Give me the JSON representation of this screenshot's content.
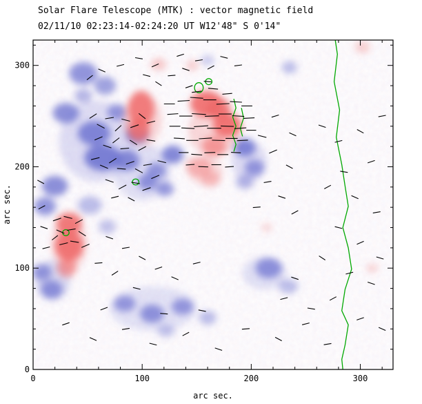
{
  "chart_data": {
    "type": "heatmap",
    "title": "Solar Flare Telescope (MTK) : vector magnetic field",
    "subtitle": "02/11/10  02:23:14-02:24:20 UT    W12'48\"  S 0'14\"",
    "xlabel": "arc sec.",
    "ylabel": "arc sec.",
    "xlim": [
      0,
      330
    ],
    "ylim": [
      0,
      325
    ],
    "xticks": [
      0,
      100,
      200,
      300
    ],
    "yticks": [
      0,
      100,
      200,
      300
    ],
    "minor_tick_step": 20,
    "colors": {
      "positive_polarity": "#ef6a6a",
      "negative_polarity": "#6f74d0",
      "contour": "#00a800",
      "vector": "#000000",
      "axis": "#000000",
      "background": "#ffffff"
    },
    "legend": "none",
    "grid": false,
    "regions_negative": [
      [
        58,
        225,
        34,
        40,
        0.22
      ],
      [
        100,
        195,
        26,
        28,
        0.2
      ],
      [
        110,
        60,
        40,
        22,
        0.18
      ],
      [
        18,
        88,
        16,
        20,
        0.25
      ],
      [
        212,
        95,
        20,
        16,
        0.2
      ],
      [
        198,
        205,
        16,
        20,
        0.22
      ],
      [
        46,
        292,
        13,
        11,
        0.75
      ],
      [
        66,
        280,
        10,
        9,
        0.65
      ],
      [
        30,
        253,
        12,
        10,
        0.8
      ],
      [
        56,
        233,
        15,
        12,
        0.85
      ],
      [
        64,
        209,
        17,
        13,
        0.9
      ],
      [
        86,
        206,
        12,
        10,
        0.8
      ],
      [
        95,
        231,
        10,
        8,
        0.75
      ],
      [
        77,
        254,
        9,
        8,
        0.7
      ],
      [
        20,
        181,
        12,
        10,
        0.8
      ],
      [
        11,
        161,
        10,
        9,
        0.75
      ],
      [
        52,
        162,
        11,
        9,
        0.45
      ],
      [
        68,
        141,
        8,
        7,
        0.4
      ],
      [
        128,
        212,
        10,
        9,
        0.85
      ],
      [
        113,
        196,
        9,
        8,
        0.7
      ],
      [
        105,
        185,
        9,
        8,
        0.75
      ],
      [
        121,
        178,
        8,
        7,
        0.7
      ],
      [
        194,
        219,
        10,
        9,
        0.85
      ],
      [
        203,
        199,
        9,
        8,
        0.7
      ],
      [
        194,
        185,
        8,
        7,
        0.5
      ],
      [
        235,
        298,
        7,
        6,
        0.45
      ],
      [
        160,
        305,
        6,
        5,
        0.35
      ],
      [
        216,
        100,
        12,
        10,
        0.75
      ],
      [
        234,
        82,
        9,
        7,
        0.45
      ],
      [
        8,
        96,
        9,
        8,
        0.7
      ],
      [
        17,
        79,
        10,
        9,
        0.75
      ],
      [
        84,
        65,
        10,
        8,
        0.7
      ],
      [
        109,
        55,
        11,
        9,
        0.75
      ],
      [
        137,
        62,
        10,
        8,
        0.7
      ],
      [
        160,
        51,
        8,
        7,
        0.45
      ],
      [
        122,
        38,
        8,
        6,
        0.4
      ],
      [
        46,
        270,
        8,
        7,
        0.5
      ]
    ],
    "regions_positive": [
      [
        100,
        246,
        18,
        26,
        0.25
      ],
      [
        166,
        235,
        24,
        24,
        0.25
      ],
      [
        33,
        124,
        16,
        26,
        0.27
      ],
      [
        158,
        196,
        16,
        14,
        0.2
      ],
      [
        99,
        257,
        12,
        18,
        0.85
      ],
      [
        97,
        237,
        10,
        11,
        0.8
      ],
      [
        159,
        262,
        15,
        13,
        0.9
      ],
      [
        178,
        241,
        13,
        12,
        0.9
      ],
      [
        170,
        257,
        11,
        11,
        0.85
      ],
      [
        166,
        220,
        11,
        10,
        0.6
      ],
      [
        152,
        200,
        12,
        10,
        0.4
      ],
      [
        163,
        188,
        9,
        8,
        0.35
      ],
      [
        33,
        144,
        12,
        11,
        0.85
      ],
      [
        33,
        122,
        13,
        15,
        0.9
      ],
      [
        31,
        100,
        9,
        9,
        0.6
      ],
      [
        115,
        301,
        7,
        6,
        0.35
      ],
      [
        146,
        300,
        6,
        5,
        0.3
      ],
      [
        302,
        318,
        7,
        6,
        0.3
      ],
      [
        311,
        100,
        5,
        4,
        0.3
      ],
      [
        214,
        140,
        5,
        4,
        0.25
      ]
    ],
    "contour_main": [
      [
        277,
        325
      ],
      [
        279,
        311
      ],
      [
        276,
        284
      ],
      [
        281,
        256
      ],
      [
        278,
        229
      ],
      [
        283,
        202
      ],
      [
        286,
        181
      ],
      [
        289,
        161
      ],
      [
        284,
        140
      ],
      [
        289,
        120
      ],
      [
        292,
        99
      ],
      [
        286,
        79
      ],
      [
        283,
        58
      ],
      [
        289,
        44
      ],
      [
        286,
        24
      ],
      [
        283,
        10
      ],
      [
        284,
        0
      ]
    ],
    "contour_loops": [
      [
        30,
        135,
        3,
        3
      ],
      [
        94,
        185,
        3,
        3
      ],
      [
        152,
        278,
        4,
        5
      ],
      [
        161,
        284,
        3,
        3
      ]
    ],
    "contour_paths": [
      [
        [
          184,
          267
        ],
        [
          186,
          258
        ],
        [
          183,
          249
        ],
        [
          186,
          240
        ],
        [
          183,
          231
        ],
        [
          186,
          222
        ],
        [
          184,
          215
        ]
      ],
      [
        [
          191,
          258
        ],
        [
          193,
          248
        ],
        [
          190,
          238
        ],
        [
          192,
          230
        ]
      ]
    ],
    "vectors": [
      [
        52,
        288,
        40,
        7
      ],
      [
        63,
        295,
        -25,
        7
      ],
      [
        80,
        300,
        15,
        7
      ],
      [
        97,
        307,
        -10,
        7
      ],
      [
        112,
        300,
        25,
        7
      ],
      [
        127,
        290,
        5,
        7
      ],
      [
        140,
        296,
        -20,
        7
      ],
      [
        152,
        305,
        10,
        7
      ],
      [
        163,
        298,
        30,
        7
      ],
      [
        175,
        308,
        -15,
        7
      ],
      [
        188,
        300,
        8,
        7
      ],
      [
        115,
        282,
        -35,
        7
      ],
      [
        143,
        279,
        20,
        7
      ],
      [
        160,
        284,
        -5,
        7
      ],
      [
        135,
        310,
        18,
        7
      ],
      [
        104,
        290,
        -15,
        7
      ],
      [
        55,
        250,
        35,
        8
      ],
      [
        62,
        240,
        -30,
        8
      ],
      [
        70,
        248,
        10,
        8
      ],
      [
        78,
        238,
        45,
        8
      ],
      [
        85,
        246,
        -15,
        8
      ],
      [
        93,
        240,
        20,
        8
      ],
      [
        100,
        250,
        -40,
        8
      ],
      [
        108,
        244,
        15,
        8
      ],
      [
        60,
        228,
        25,
        8
      ],
      [
        68,
        220,
        -20,
        8
      ],
      [
        76,
        226,
        40,
        8
      ],
      [
        84,
        218,
        5,
        8
      ],
      [
        92,
        224,
        -35,
        8
      ],
      [
        100,
        218,
        30,
        8
      ],
      [
        108,
        226,
        -10,
        8
      ],
      [
        57,
        208,
        15,
        8
      ],
      [
        65,
        200,
        -25,
        8
      ],
      [
        73,
        206,
        35,
        8
      ],
      [
        81,
        198,
        -5,
        8
      ],
      [
        89,
        204,
        20,
        8
      ],
      [
        97,
        196,
        -30,
        8
      ],
      [
        105,
        202,
        10,
        8
      ],
      [
        70,
        186,
        -20,
        8
      ],
      [
        82,
        180,
        30,
        8
      ],
      [
        94,
        184,
        -10,
        8
      ],
      [
        104,
        178,
        20,
        8
      ],
      [
        90,
        168,
        -30,
        7
      ],
      [
        75,
        170,
        15,
        7
      ],
      [
        112,
        190,
        25,
        8
      ],
      [
        118,
        205,
        -15,
        8
      ],
      [
        125,
        262,
        0,
        10
      ],
      [
        138,
        265,
        4,
        11
      ],
      [
        150,
        268,
        -4,
        12
      ],
      [
        162,
        266,
        0,
        12
      ],
      [
        174,
        262,
        3,
        12
      ],
      [
        186,
        264,
        -3,
        11
      ],
      [
        196,
        260,
        0,
        10
      ],
      [
        128,
        252,
        4,
        10
      ],
      [
        140,
        250,
        0,
        12
      ],
      [
        152,
        252,
        -4,
        13
      ],
      [
        164,
        250,
        2,
        13
      ],
      [
        176,
        252,
        0,
        12
      ],
      [
        188,
        250,
        -4,
        11
      ],
      [
        198,
        248,
        3,
        10
      ],
      [
        130,
        240,
        0,
        10
      ],
      [
        142,
        238,
        -3,
        12
      ],
      [
        154,
        240,
        4,
        13
      ],
      [
        166,
        238,
        0,
        13
      ],
      [
        178,
        240,
        -2,
        12
      ],
      [
        190,
        238,
        4,
        11
      ],
      [
        200,
        236,
        0,
        9
      ],
      [
        134,
        228,
        -4,
        10
      ],
      [
        146,
        226,
        0,
        11
      ],
      [
        158,
        228,
        4,
        12
      ],
      [
        170,
        226,
        -2,
        12
      ],
      [
        182,
        228,
        0,
        11
      ],
      [
        192,
        226,
        3,
        10
      ],
      [
        138,
        214,
        0,
        9
      ],
      [
        150,
        212,
        -4,
        10
      ],
      [
        162,
        214,
        2,
        10
      ],
      [
        174,
        212,
        0,
        10
      ],
      [
        186,
        214,
        -3,
        9
      ],
      [
        144,
        202,
        4,
        8
      ],
      [
        156,
        200,
        -2,
        9
      ],
      [
        168,
        202,
        0,
        9
      ],
      [
        180,
        200,
        4,
        8
      ],
      [
        150,
        274,
        8,
        9
      ],
      [
        165,
        277,
        -6,
        9
      ],
      [
        178,
        272,
        5,
        9
      ],
      [
        22,
        148,
        20,
        8
      ],
      [
        32,
        150,
        -15,
        8
      ],
      [
        42,
        146,
        30,
        8
      ],
      [
        25,
        136,
        -25,
        8
      ],
      [
        35,
        138,
        10,
        8
      ],
      [
        45,
        134,
        -35,
        8
      ],
      [
        28,
        124,
        15,
        8
      ],
      [
        38,
        126,
        -10,
        8
      ],
      [
        48,
        122,
        25,
        8
      ],
      [
        20,
        130,
        40,
        7
      ],
      [
        8,
        160,
        30,
        7
      ],
      [
        10,
        140,
        -20,
        7
      ],
      [
        12,
        120,
        15,
        7
      ],
      [
        7,
        185,
        -30,
        7
      ],
      [
        70,
        130,
        -20,
        7
      ],
      [
        85,
        120,
        10,
        7
      ],
      [
        100,
        110,
        -30,
        7
      ],
      [
        115,
        100,
        20,
        7
      ],
      [
        75,
        95,
        35,
        7
      ],
      [
        95,
        80,
        -15,
        7
      ],
      [
        60,
        105,
        5,
        7
      ],
      [
        130,
        90,
        -25,
        7
      ],
      [
        150,
        105,
        15,
        7
      ],
      [
        30,
        45,
        20,
        7
      ],
      [
        55,
        30,
        -25,
        7
      ],
      [
        85,
        40,
        10,
        7
      ],
      [
        110,
        25,
        -15,
        7
      ],
      [
        140,
        35,
        30,
        7
      ],
      [
        170,
        20,
        -20,
        7
      ],
      [
        195,
        40,
        5,
        7
      ],
      [
        225,
        30,
        -30,
        7
      ],
      [
        250,
        45,
        15,
        7
      ],
      [
        120,
        55,
        -5,
        7
      ],
      [
        65,
        60,
        22,
        7
      ],
      [
        155,
        58,
        -12,
        7
      ],
      [
        265,
        240,
        -20,
        7
      ],
      [
        280,
        225,
        15,
        7
      ],
      [
        300,
        235,
        -30,
        7
      ],
      [
        310,
        205,
        20,
        7
      ],
      [
        285,
        195,
        -10,
        7
      ],
      [
        270,
        180,
        30,
        7
      ],
      [
        295,
        170,
        -25,
        7
      ],
      [
        315,
        155,
        10,
        7
      ],
      [
        280,
        140,
        -15,
        7
      ],
      [
        300,
        125,
        25,
        7
      ],
      [
        265,
        110,
        -35,
        7
      ],
      [
        290,
        95,
        15,
        7
      ],
      [
        310,
        85,
        -20,
        7
      ],
      [
        275,
        70,
        30,
        7
      ],
      [
        255,
        60,
        -10,
        7
      ],
      [
        300,
        50,
        20,
        7
      ],
      [
        320,
        40,
        -25,
        7
      ],
      [
        270,
        25,
        10,
        7
      ],
      [
        240,
        90,
        -20,
        7
      ],
      [
        230,
        70,
        15,
        7
      ],
      [
        320,
        250,
        12,
        7
      ],
      [
        318,
        110,
        -18,
        7
      ],
      [
        210,
        230,
        -15,
        8
      ],
      [
        220,
        215,
        25,
        8
      ],
      [
        235,
        200,
        -30,
        7
      ],
      [
        215,
        185,
        10,
        7
      ],
      [
        228,
        170,
        -20,
        7
      ],
      [
        240,
        155,
        30,
        7
      ],
      [
        205,
        160,
        5,
        7
      ],
      [
        222,
        250,
        18,
        7
      ],
      [
        238,
        232,
        -25,
        7
      ]
    ]
  }
}
